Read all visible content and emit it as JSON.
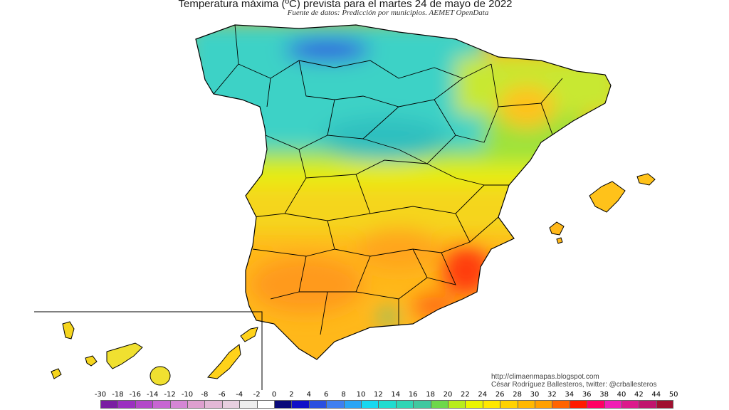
{
  "header": {
    "title": "Temperatura máxima (ºC) prevista para el martes 24 de mayo de 2022",
    "subtitle": "Fuente de datos: Predicción por municipios. AEMET OpenData"
  },
  "credits": {
    "blog": "http://climaenmapas.blogspot.com",
    "author": "César Rodríguez Ballesteros, twitter: @crballesteros"
  },
  "legend": {
    "ticks": [
      "-30",
      "-18",
      "-16",
      "-14",
      "-12",
      "-10",
      "-8",
      "-6",
      "-4",
      "-2",
      "0",
      "2",
      "4",
      "6",
      "8",
      "10",
      "12",
      "14",
      "16",
      "18",
      "20",
      "22",
      "24",
      "26",
      "28",
      "30",
      "32",
      "34",
      "36",
      "38",
      "40",
      "42",
      "44",
      "50"
    ],
    "colors": [
      "#7a1fa2",
      "#9b30c0",
      "#b347c9",
      "#c765d2",
      "#d486d5",
      "#de9fcf",
      "#e3b8d6",
      "#e8cfe0",
      "#eeeeee",
      "#ffffff",
      "#0a0a7a",
      "#1010c8",
      "#2a4fe0",
      "#3f7ff0",
      "#2aa5f5",
      "#18d8f0",
      "#20dcd0",
      "#30d5b5",
      "#40c8a0",
      "#6ed84a",
      "#b8ec1c",
      "#eaf500",
      "#ffe800",
      "#ffd200",
      "#ffb800",
      "#ffa000",
      "#ff6400",
      "#ff1a00",
      "#ff0064",
      "#f01eb4",
      "#dc1a8c",
      "#c0146e",
      "#a01030",
      "#781818"
    ]
  },
  "map_colors": {
    "north_cold": "#2fd0c8",
    "north_mid": "#5fd8a6",
    "transition": "#9fe33a",
    "plateau": "#f4e020",
    "warm": "#ffc21a",
    "hot": "#ff9a1a",
    "very_hot": "#ff2020",
    "border": "#000000"
  }
}
